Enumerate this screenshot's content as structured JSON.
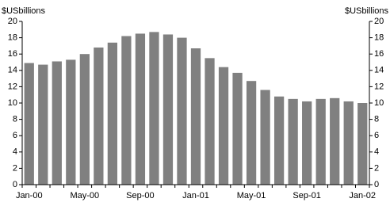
{
  "chart_data": {
    "type": "bar",
    "y_label": "$USbillions",
    "y2_label": "$USbillions",
    "categories": [
      "Jan-00",
      null,
      null,
      null,
      "May-00",
      null,
      null,
      null,
      "Sep-00",
      null,
      null,
      null,
      "Jan-01",
      null,
      null,
      null,
      "May-01",
      null,
      null,
      null,
      "Sep-01",
      null,
      null,
      null,
      "Jan-02"
    ],
    "values": [
      14.9,
      14.7,
      15.1,
      15.3,
      16.0,
      16.8,
      17.4,
      18.2,
      18.5,
      18.7,
      18.4,
      18.0,
      16.7,
      15.5,
      14.4,
      13.7,
      12.7,
      11.6,
      10.8,
      10.5,
      10.2,
      10.5,
      10.6,
      10.2,
      10.0
    ],
    "color": "#808080",
    "ylim": [
      0,
      20
    ],
    "yticks": [
      0,
      2,
      4,
      6,
      8,
      10,
      12,
      14,
      16,
      18,
      20
    ],
    "y2lim": [
      0,
      20
    ],
    "y2ticks": [
      0,
      2,
      4,
      6,
      8,
      10,
      12,
      14,
      16,
      18,
      20
    ],
    "grid": false
  }
}
